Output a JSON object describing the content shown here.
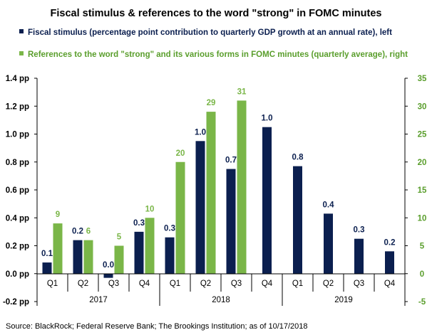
{
  "colors": {
    "fiscal": "#0b1f4f",
    "strong": "#7ab648",
    "axis": "#000000",
    "right_axis_text": "#5a9e2c",
    "legend_fiscal_text": "#0b1f4f",
    "legend_strong_text": "#5a9e2c"
  },
  "chart_data": {
    "type": "bar",
    "title": "Fiscal stimulus & references to the word \"strong\" in FOMC minutes",
    "categories": [
      "Q1",
      "Q2",
      "Q3",
      "Q4",
      "Q1",
      "Q2",
      "Q3",
      "Q4",
      "Q1",
      "Q2",
      "Q3",
      "Q4"
    ],
    "groups": [
      {
        "label": "2017",
        "start": 0,
        "end": 3
      },
      {
        "label": "2018",
        "start": 4,
        "end": 7
      },
      {
        "label": "2019",
        "start": 8,
        "end": 11
      }
    ],
    "series": [
      {
        "name": "Fiscal stimulus (percentage point contribution to quarterly GDP growth at an annual rate), left",
        "axis": "left",
        "values": [
          0.08,
          0.24,
          -0.03,
          0.3,
          0.26,
          0.95,
          0.75,
          1.05,
          0.77,
          0.43,
          0.25,
          0.16
        ],
        "labels": [
          "0.1",
          "0.2",
          "0.0",
          "0.3",
          "0.3",
          "1.0",
          "0.7",
          "1.0",
          "0.8",
          "0.4",
          "0.3",
          "0.2"
        ]
      },
      {
        "name": "References to the word \"strong\" and its various forms in FOMC minutes (quarterly average), right",
        "axis": "right",
        "values": [
          9,
          6,
          5,
          10,
          20,
          29,
          31,
          null,
          null,
          null,
          null,
          null
        ],
        "labels": [
          "9",
          "6",
          "5",
          "10",
          "20",
          "29",
          "31",
          "",
          "",
          "",
          "",
          ""
        ]
      }
    ],
    "y_left": {
      "min": -0.2,
      "max": 1.4,
      "step": 0.2,
      "ticks": [
        "-0.2 pp",
        "0.0 pp",
        "0.2 pp",
        "0.4 pp",
        "0.6 pp",
        "0.8 pp",
        "1.0 pp",
        "1.2 pp",
        "1.4 pp"
      ]
    },
    "y_right": {
      "min": -5,
      "max": 35,
      "step": 5,
      "ticks": [
        "-5",
        "0",
        "5",
        "10",
        "15",
        "20",
        "25",
        "30",
        "35"
      ]
    },
    "grid": false,
    "legend_placement": "top"
  },
  "source": "Source: BlackRock; Federal Reserve Bank; The Brookings Institution; as of 10/17/2018"
}
